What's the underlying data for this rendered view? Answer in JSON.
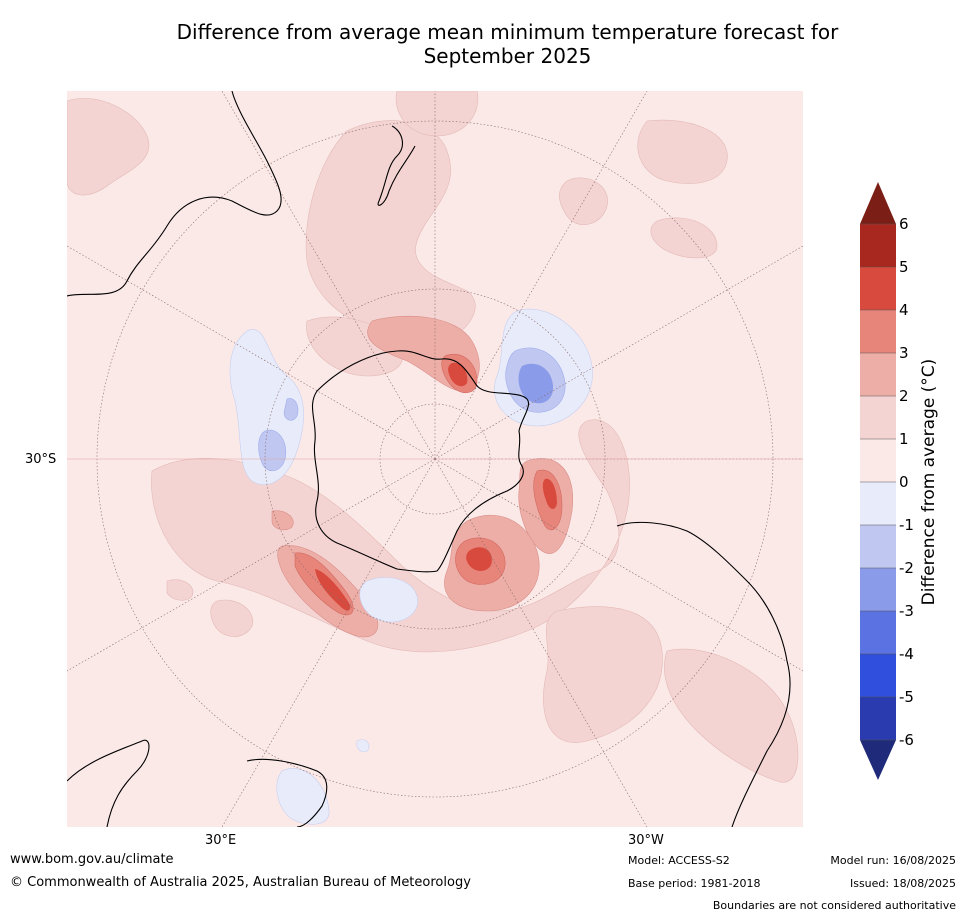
{
  "title_line1": "Difference from average mean minimum temperature forecast for",
  "title_line2": "September 2025",
  "map": {
    "projection": "south-polar-stereographic",
    "labels": {
      "lat_30s": "30°S",
      "lon_30e": "30°E",
      "lon_30w": "30°W"
    }
  },
  "colorbar": {
    "title": "Difference from average (°C)",
    "ticks": [
      "6",
      "5",
      "4",
      "3",
      "2",
      "1",
      "0",
      "-1",
      "-2",
      "-3",
      "-4",
      "-5",
      "-6"
    ],
    "levels": [
      {
        "range": [
          5,
          6
        ],
        "color": "#a8281f"
      },
      {
        "range": [
          4,
          5
        ],
        "color": "#d84a3d"
      },
      {
        "range": [
          3,
          4
        ],
        "color": "#e8857b"
      },
      {
        "range": [
          2,
          3
        ],
        "color": "#eeaea8"
      },
      {
        "range": [
          1,
          2
        ],
        "color": "#f4d4d2"
      },
      {
        "range": [
          0,
          1
        ],
        "color": "#fbe9e8"
      },
      {
        "range": [
          -1,
          0
        ],
        "color": "#e8ecfa"
      },
      {
        "range": [
          -2,
          -1
        ],
        "color": "#c0c8f2"
      },
      {
        "range": [
          -3,
          -2
        ],
        "color": "#8a9be9"
      },
      {
        "range": [
          -4,
          -3
        ],
        "color": "#5a72e2"
      },
      {
        "range": [
          -5,
          -4
        ],
        "color": "#2f4fdc"
      },
      {
        "range": [
          -6,
          -5
        ],
        "color": "#2a3bb0"
      }
    ],
    "extend_high_color": "#7b1f16",
    "extend_low_color": "#1f2a7a"
  },
  "footer": {
    "website": "www.bom.gov.au/climate",
    "copyright": "© Commonwealth of Australia 2025, Australian Bureau of Meteorology",
    "model": "Model: ACCESS-S2",
    "base_period": "Base period: 1981-2018",
    "model_run": "Model run: 16/08/2025",
    "issued": "Issued: 18/08/2025",
    "disclaimer": "Boundaries are not considered authoritative"
  }
}
